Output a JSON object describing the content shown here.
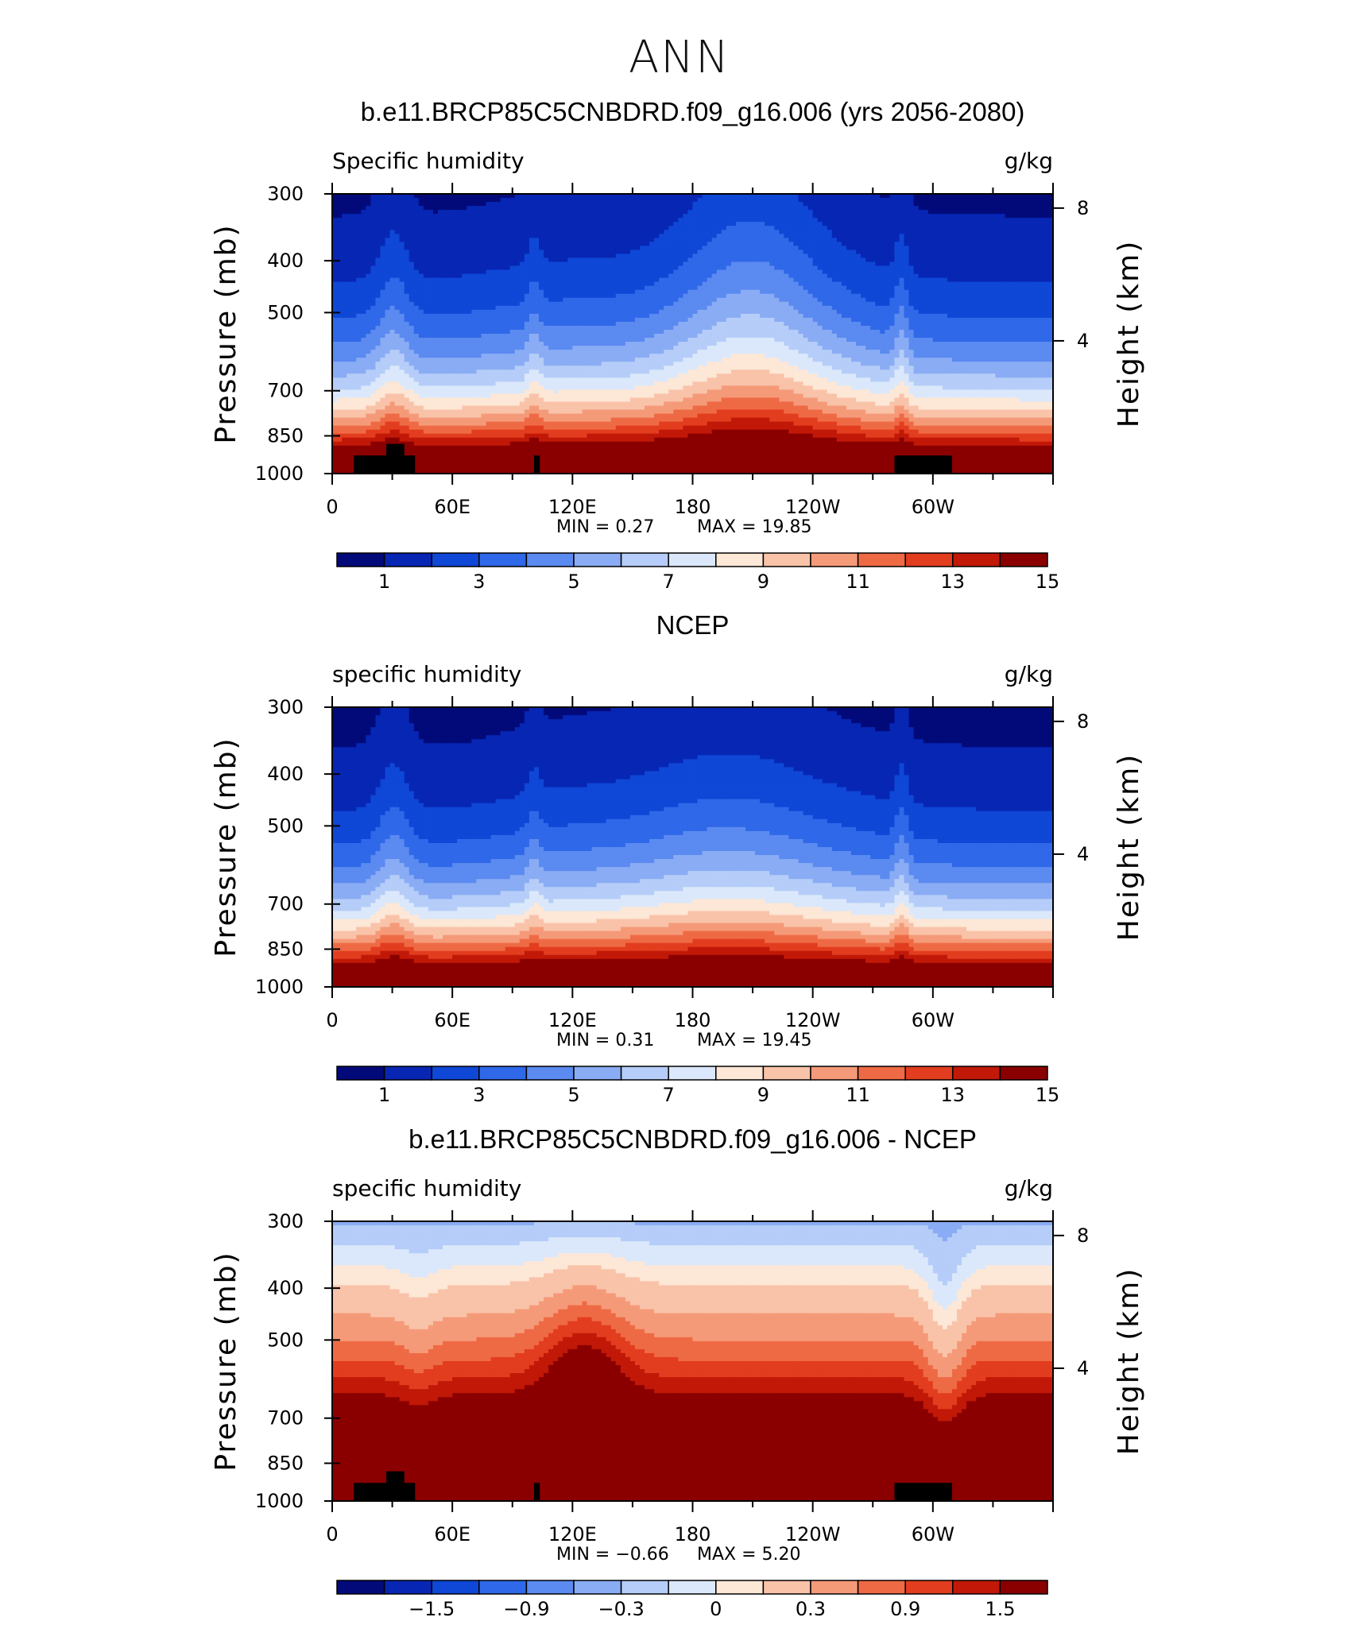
{
  "page": {
    "title": "ANN"
  },
  "chart_data": [
    {
      "type": "contour",
      "title": "b.e11.BRCP85C5CNBDRD.f09_g16.006 (yrs 2056-2080)",
      "variable": "Specific humidity",
      "units": "g/kg",
      "ylabel": "Pressure (mb)",
      "y2label": "Height (km)",
      "yticks": [
        300,
        400,
        500,
        700,
        850,
        1000
      ],
      "y2ticks": [
        8,
        4
      ],
      "xticks": [
        "0",
        "60E",
        "120E",
        "180",
        "120W",
        "60W"
      ],
      "min_text": "MIN =   0.27",
      "max_text": "MAX =   19.85",
      "min": 0.27,
      "max": 19.85,
      "colorbar_labels": [
        "1",
        "3",
        "5",
        "7",
        "9",
        "11",
        "13",
        "15"
      ],
      "colorbar_colors": [
        "#020a7a",
        "#0726b4",
        "#0f47d6",
        "#2f68e8",
        "#5b8af0",
        "#8aacf4",
        "#b5cdf8",
        "#dbe8fb",
        "#fde7d6",
        "#f9c3a9",
        "#f59a79",
        "#ee6a45",
        "#e23d1e",
        "#c11808",
        "#8a0000"
      ],
      "terrain": "black"
    },
    {
      "type": "contour",
      "title": "NCEP",
      "variable": "specific humidity",
      "units": "g/kg",
      "ylabel": "Pressure (mb)",
      "y2label": "Height (km)",
      "yticks": [
        300,
        400,
        500,
        700,
        850,
        1000
      ],
      "y2ticks": [
        8,
        4
      ],
      "xticks": [
        "0",
        "60E",
        "120E",
        "180",
        "120W",
        "60W"
      ],
      "min_text": "MIN =   0.31",
      "max_text": "MAX =   19.45",
      "min": 0.31,
      "max": 19.45,
      "colorbar_labels": [
        "1",
        "3",
        "5",
        "7",
        "9",
        "11",
        "13",
        "15"
      ],
      "colorbar_colors": [
        "#020a7a",
        "#0726b4",
        "#0f47d6",
        "#2f68e8",
        "#5b8af0",
        "#8aacf4",
        "#b5cdf8",
        "#dbe8fb",
        "#fde7d6",
        "#f9c3a9",
        "#f59a79",
        "#ee6a45",
        "#e23d1e",
        "#c11808",
        "#8a0000"
      ],
      "terrain": "none"
    },
    {
      "type": "contour",
      "title": "b.e11.BRCP85C5CNBDRD.f09_g16.006 - NCEP",
      "variable": "specific humidity",
      "units": "g/kg",
      "ylabel": "Pressure (mb)",
      "y2label": "Height (km)",
      "yticks": [
        300,
        400,
        500,
        700,
        850,
        1000
      ],
      "y2ticks": [
        8,
        4
      ],
      "xticks": [
        "0",
        "60E",
        "120E",
        "180",
        "120W",
        "60W"
      ],
      "min_text": "MIN =  −0.66",
      "max_text": "MAX =    5.20",
      "min": -0.66,
      "max": 5.2,
      "colorbar_labels": [
        "−1.5",
        "−0.9",
        "−0.3",
        "0",
        "0.3",
        "0.9",
        "1.5"
      ],
      "colorbar_colors": [
        "#020a7a",
        "#0726b4",
        "#0f47d6",
        "#2f68e8",
        "#5b8af0",
        "#8aacf4",
        "#b5cdf8",
        "#dbe8fb",
        "#fde7d6",
        "#f9c3a9",
        "#f59a79",
        "#ee6a45",
        "#e23d1e",
        "#c11808",
        "#8a0000"
      ],
      "terrain": "black"
    }
  ]
}
